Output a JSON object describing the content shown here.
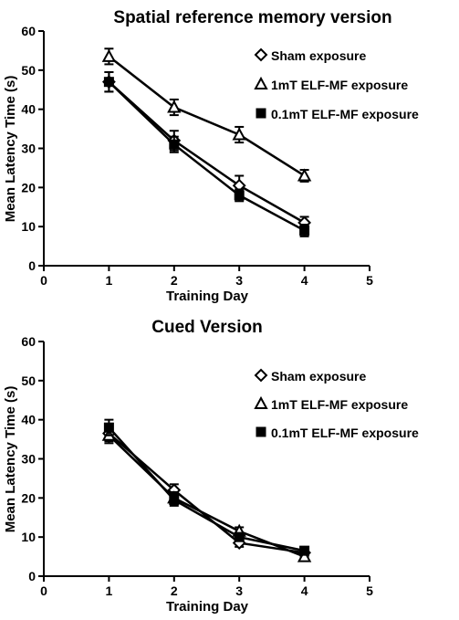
{
  "chart_data": [
    {
      "type": "line",
      "title": "Spatial reference memory version",
      "xlabel": "Training Day",
      "ylabel": "Mean Latency Time (s)",
      "xlim": [
        0,
        5
      ],
      "ylim": [
        0,
        60
      ],
      "xticks": [
        0,
        1,
        2,
        3,
        4,
        5
      ],
      "yticks": [
        0,
        10,
        20,
        30,
        40,
        50,
        60
      ],
      "grid": false,
      "legend_position": "top-right",
      "x": [
        1,
        2,
        3,
        4
      ],
      "series": [
        {
          "name": "Sham exposure",
          "marker": "diamond",
          "values": [
            47,
            32,
            20.5,
            11
          ],
          "errors": [
            2.5,
            2.5,
            2.5,
            1.5
          ]
        },
        {
          "name": "1mT ELF-MF exposure",
          "marker": "triangle",
          "values": [
            53.5,
            40.5,
            33.5,
            23
          ],
          "errors": [
            2.0,
            2.0,
            2.0,
            1.5
          ]
        },
        {
          "name": "0.1mT ELF-MF exposure",
          "marker": "square",
          "values": [
            47,
            31,
            18,
            9
          ],
          "errors": [
            2.5,
            2.0,
            1.5,
            1.5
          ]
        }
      ]
    },
    {
      "type": "line",
      "title": "Cued Version",
      "xlabel": "Training Day",
      "ylabel": "Mean Latency Time (s)",
      "xlim": [
        0,
        5
      ],
      "ylim": [
        0,
        60
      ],
      "xticks": [
        0,
        1,
        2,
        3,
        4,
        5
      ],
      "yticks": [
        0,
        10,
        20,
        30,
        40,
        50,
        60
      ],
      "grid": false,
      "legend_position": "top-right",
      "x": [
        1,
        2,
        3,
        4
      ],
      "series": [
        {
          "name": "Sham exposure",
          "marker": "diamond",
          "values": [
            36.5,
            22,
            8.5,
            6
          ],
          "errors": [
            2.0,
            1.5,
            1.0,
            1.0
          ]
        },
        {
          "name": "1mT ELF-MF exposure",
          "marker": "triangle",
          "values": [
            36,
            20,
            11.5,
            5
          ],
          "errors": [
            2.0,
            1.5,
            1.0,
            1.0
          ]
        },
        {
          "name": "0.1mT ELF-MF exposure",
          "marker": "square",
          "values": [
            38,
            19.5,
            10,
            6.5
          ],
          "errors": [
            2.0,
            1.5,
            1.0,
            1.0
          ]
        }
      ]
    }
  ]
}
